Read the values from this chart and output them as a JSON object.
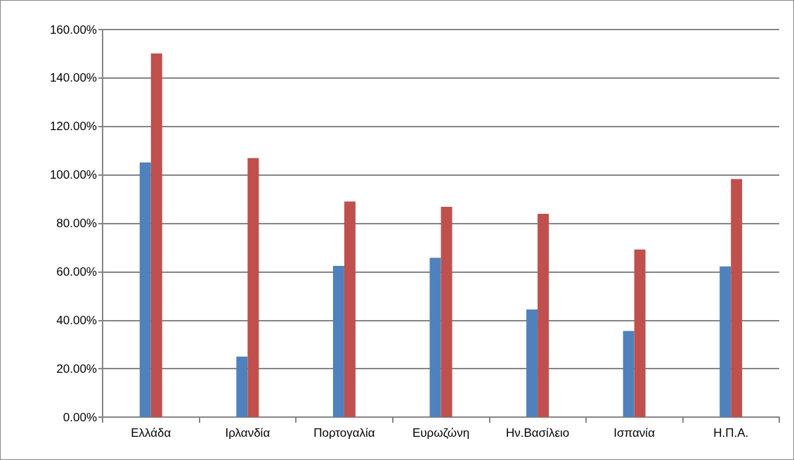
{
  "chart_data": {
    "type": "bar",
    "categories": [
      "Ελλάδα",
      "Ιρλανδία",
      "Πορτογαλία",
      "Ευρωζώνη",
      "Ην.Βασίλειο",
      "Ισπανία",
      "Η.Π.Α."
    ],
    "series": [
      {
        "color": "#4f81bd",
        "values": [
          105.1,
          25.0,
          62.4,
          65.8,
          44.4,
          35.6,
          62.2
        ]
      },
      {
        "color": "#c0504d",
        "values": [
          150.1,
          106.9,
          89.0,
          86.8,
          83.9,
          69.2,
          98.3
        ]
      }
    ],
    "ylim": [
      0,
      160
    ],
    "yticks": [
      {
        "value": 0,
        "label": "0.00%"
      },
      {
        "value": 20,
        "label": "20.00%"
      },
      {
        "value": 40,
        "label": "40.00%"
      },
      {
        "value": 60,
        "label": "60.00%"
      },
      {
        "value": 80,
        "label": "80.00%"
      },
      {
        "value": 100,
        "label": "100.00%"
      },
      {
        "value": 120,
        "label": "120.00%"
      },
      {
        "value": 140,
        "label": "140.00%"
      },
      {
        "value": 160,
        "label": "160.00%"
      }
    ],
    "grid": "y"
  }
}
